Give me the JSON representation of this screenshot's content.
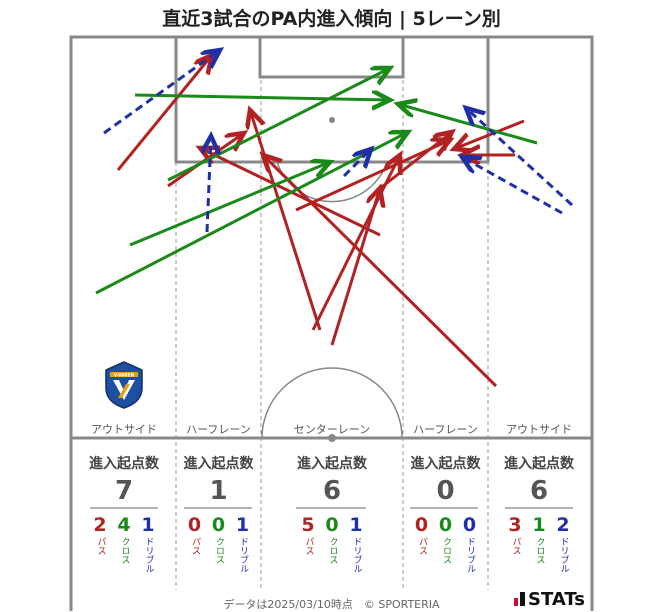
{
  "title": "直近3試合のPA内進入傾向 | 5レーン別",
  "lanes": [
    {
      "label": "アウトサイド",
      "header": "進入起点数",
      "total": "7",
      "pass": "2",
      "cross": "4",
      "dribble": "1"
    },
    {
      "label": "ハーフレーン",
      "header": "進入起点数",
      "total": "1",
      "pass": "0",
      "cross": "0",
      "dribble": "1"
    },
    {
      "label": "センターレーン",
      "header": "進入起点数",
      "total": "6",
      "pass": "5",
      "cross": "0",
      "dribble": "1"
    },
    {
      "label": "ハーフレーン",
      "header": "進入起点数",
      "total": "0",
      "pass": "0",
      "cross": "0",
      "dribble": "0"
    },
    {
      "label": "アウトサイド",
      "header": "進入起点数",
      "total": "6",
      "pass": "3",
      "cross": "1",
      "dribble": "2"
    }
  ],
  "type_labels": {
    "pass": "パス",
    "cross": "クロス",
    "dribble": "ドリブル"
  },
  "colors": {
    "pass": "#b22222",
    "cross": "#1a8a1a",
    "dribble": "#1f2fa8"
  },
  "footer": "データは2025/03/10時点　© SPORTERIA",
  "brand": "STATs",
  "crest_text": "V-VAREN"
}
